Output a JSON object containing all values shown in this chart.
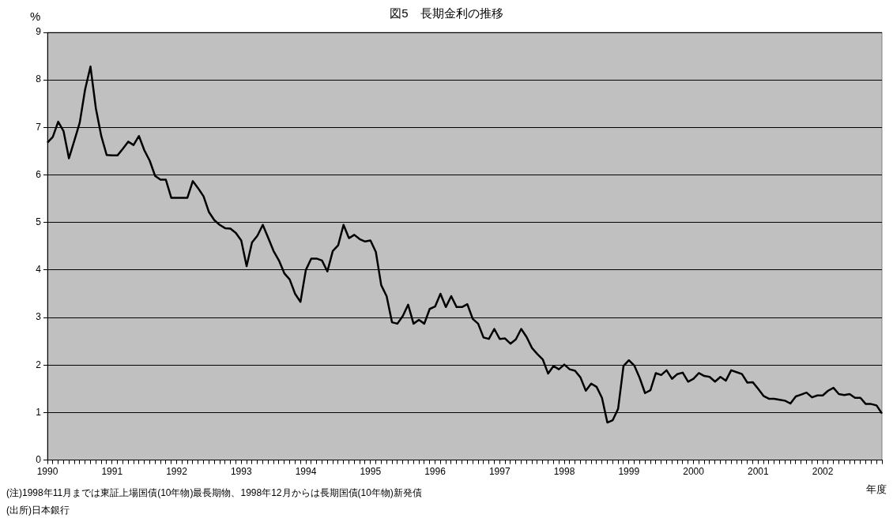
{
  "chart_data": {
    "type": "line",
    "title": "図5　長期金利の推移",
    "xlabel": "年度",
    "ylabel": "%",
    "categories": [
      "1990",
      null,
      null,
      null,
      null,
      null,
      null,
      null,
      null,
      null,
      null,
      null,
      "1991",
      null,
      null,
      null,
      null,
      null,
      null,
      null,
      null,
      null,
      null,
      null,
      "1992",
      null,
      null,
      null,
      null,
      null,
      null,
      null,
      null,
      null,
      null,
      null,
      "1993",
      null,
      null,
      null,
      null,
      null,
      null,
      null,
      null,
      null,
      null,
      null,
      "1994",
      null,
      null,
      null,
      null,
      null,
      null,
      null,
      null,
      null,
      null,
      null,
      "1995",
      null,
      null,
      null,
      null,
      null,
      null,
      null,
      null,
      null,
      null,
      null,
      "1996",
      null,
      null,
      null,
      null,
      null,
      null,
      null,
      null,
      null,
      null,
      null,
      "1997",
      null,
      null,
      null,
      null,
      null,
      null,
      null,
      null,
      null,
      null,
      null,
      "1998",
      null,
      null,
      null,
      null,
      null,
      null,
      null,
      null,
      null,
      null,
      null,
      "1999",
      null,
      null,
      null,
      null,
      null,
      null,
      null,
      null,
      null,
      null,
      null,
      "2000",
      null,
      null,
      null,
      null,
      null,
      null,
      null,
      null,
      null,
      null,
      null,
      "2001",
      null,
      null,
      null,
      null,
      null,
      null,
      null,
      null,
      null,
      null,
      null,
      "2002",
      null,
      null,
      null,
      null,
      null,
      null,
      null,
      null,
      null,
      null,
      null
    ],
    "series": [
      {
        "color": "#000000",
        "values": [
          6.68,
          6.8,
          7.12,
          6.92,
          6.35,
          6.72,
          7.1,
          7.8,
          8.28,
          7.4,
          6.82,
          6.42,
          6.41,
          6.41,
          6.55,
          6.7,
          6.63,
          6.82,
          6.52,
          6.3,
          5.98,
          5.9,
          5.9,
          5.52,
          5.52,
          5.52,
          5.52,
          5.87,
          5.72,
          5.55,
          5.22,
          5.05,
          4.95,
          4.88,
          4.87,
          4.78,
          4.62,
          4.08,
          4.58,
          4.72,
          4.95,
          4.68,
          4.4,
          4.2,
          3.93,
          3.8,
          3.5,
          3.33,
          4.0,
          4.24,
          4.24,
          4.2,
          3.97,
          4.4,
          4.52,
          4.95,
          4.67,
          4.74,
          4.65,
          4.6,
          4.62,
          4.38,
          3.68,
          3.45,
          2.9,
          2.87,
          3.03,
          3.27,
          2.87,
          2.95,
          2.87,
          3.18,
          3.23,
          3.5,
          3.22,
          3.45,
          3.22,
          3.22,
          3.28,
          2.97,
          2.87,
          2.58,
          2.55,
          2.76,
          2.55,
          2.56,
          2.45,
          2.54,
          2.76,
          2.59,
          2.36,
          2.23,
          2.12,
          1.82,
          1.98,
          1.91,
          2.01,
          1.91,
          1.88,
          1.74,
          1.46,
          1.61,
          1.54,
          1.31,
          0.79,
          0.84,
          1.08,
          1.98,
          2.1,
          1.99,
          1.73,
          1.41,
          1.47,
          1.83,
          1.79,
          1.89,
          1.71,
          1.81,
          1.84,
          1.65,
          1.71,
          1.83,
          1.77,
          1.75,
          1.65,
          1.75,
          1.67,
          1.89,
          1.85,
          1.81,
          1.63,
          1.64,
          1.5,
          1.35,
          1.29,
          1.29,
          1.27,
          1.25,
          1.19,
          1.34,
          1.38,
          1.42,
          1.32,
          1.36,
          1.36,
          1.46,
          1.52,
          1.39,
          1.37,
          1.39,
          1.31,
          1.31,
          1.18,
          1.18,
          1.15,
          0.98
        ]
      }
    ],
    "ylim": [
      0,
      9
    ],
    "yticks": [
      0,
      1,
      2,
      3,
      4,
      5,
      6,
      7,
      8,
      9
    ],
    "grid": "y",
    "legend": false,
    "annotations": [
      "(注)1998年11月までは東証上場国債(10年物)最長期物、1998年12月からは長期国債(10年物)新発債",
      "(出所)日本銀行"
    ]
  }
}
